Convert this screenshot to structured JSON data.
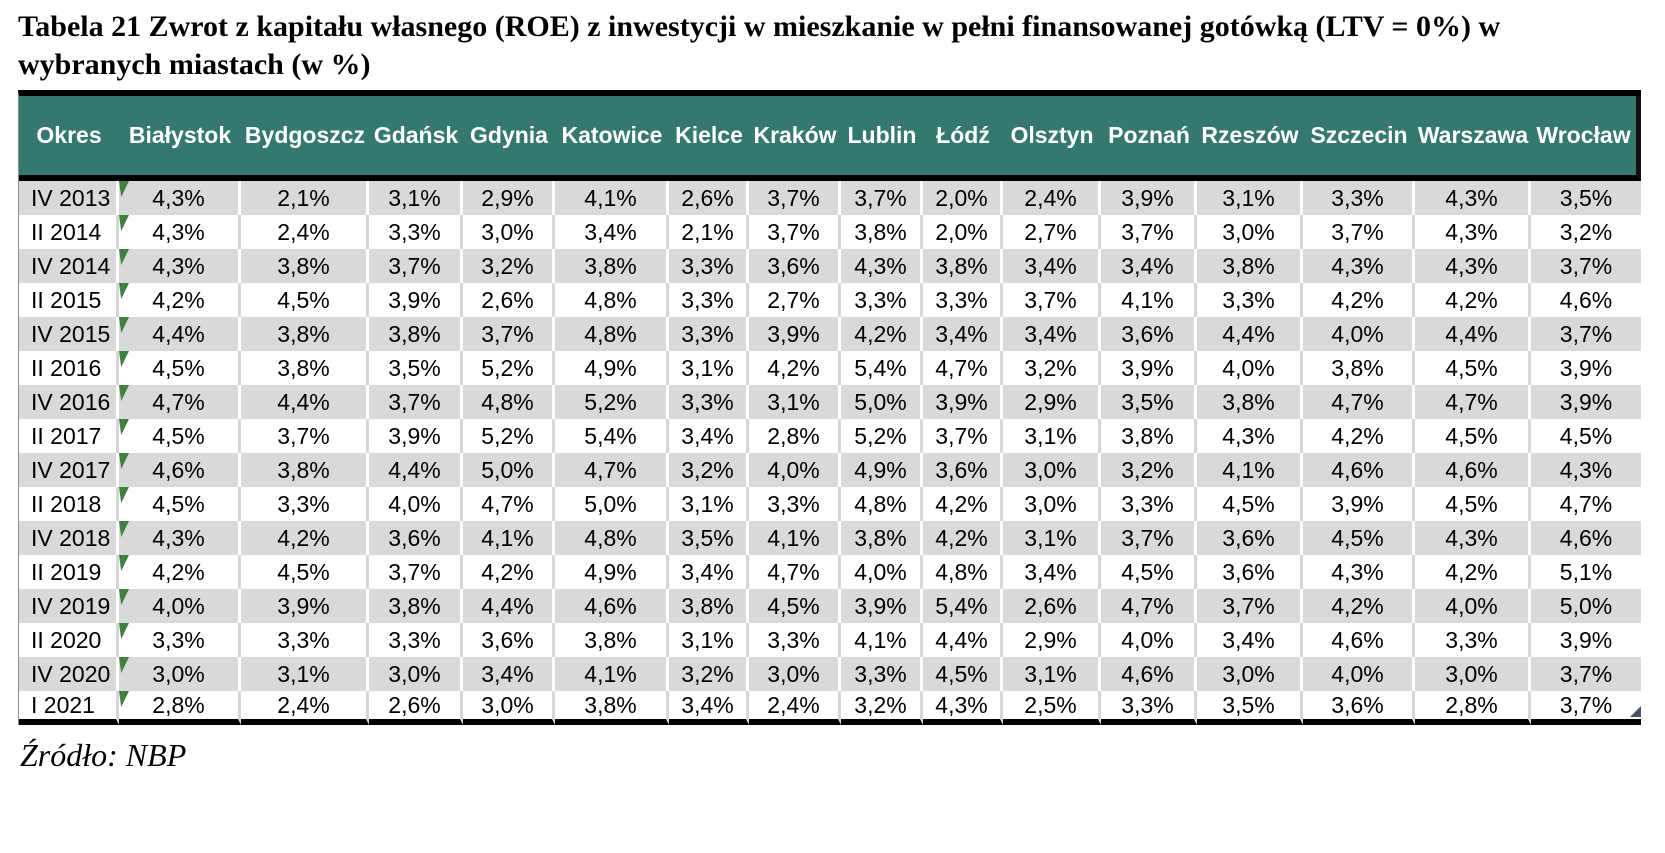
{
  "title": "Tabela 21 Zwrot z kapitału własnego (ROE) z inwestycji w mieszkanie w pełni finansowanej gotówką (LTV = 0%) w wybranych miastach (w %)",
  "source": "Źródło: NBP",
  "colors": {
    "header_bg": "#35786F",
    "header_text": "#FFFFFF",
    "stripe_bg": "#D9D9D9",
    "row_bg": "#FFFFFF",
    "marker_green": "#3F8040",
    "corner_blue": "#44546A",
    "rule_black": "#000000"
  },
  "icons": {
    "cell_flag": "green-corner-flag",
    "table_corner": "blue-corner-triangle"
  },
  "table": {
    "columns": [
      "Okres",
      "Białystok",
      "Bydgoszcz",
      "Gdańsk",
      "Gdynia",
      "Katowice",
      "Kielce",
      "Kraków",
      "Lublin",
      "Łódź",
      "Olsztyn",
      "Poznań",
      "Rzeszów",
      "Szczecin",
      "Warszawa",
      "Wrocław"
    ],
    "rows": [
      {
        "period": "IV 2013",
        "values": [
          "4,3%",
          "2,1%",
          "3,1%",
          "2,9%",
          "4,1%",
          "2,6%",
          "3,7%",
          "3,7%",
          "2,0%",
          "2,4%",
          "3,9%",
          "3,1%",
          "3,3%",
          "4,3%",
          "3,5%"
        ]
      },
      {
        "period": "II 2014",
        "values": [
          "4,3%",
          "2,4%",
          "3,3%",
          "3,0%",
          "3,4%",
          "2,1%",
          "3,7%",
          "3,8%",
          "2,0%",
          "2,7%",
          "3,7%",
          "3,0%",
          "3,7%",
          "4,3%",
          "3,2%"
        ]
      },
      {
        "period": "IV 2014",
        "values": [
          "4,3%",
          "3,8%",
          "3,7%",
          "3,2%",
          "3,8%",
          "3,3%",
          "3,6%",
          "4,3%",
          "3,8%",
          "3,4%",
          "3,4%",
          "3,8%",
          "4,3%",
          "4,3%",
          "3,7%"
        ]
      },
      {
        "period": "II 2015",
        "values": [
          "4,2%",
          "4,5%",
          "3,9%",
          "2,6%",
          "4,8%",
          "3,3%",
          "2,7%",
          "3,3%",
          "3,3%",
          "3,7%",
          "4,1%",
          "3,3%",
          "4,2%",
          "4,2%",
          "4,6%"
        ]
      },
      {
        "period": "IV 2015",
        "values": [
          "4,4%",
          "3,8%",
          "3,8%",
          "3,7%",
          "4,8%",
          "3,3%",
          "3,9%",
          "4,2%",
          "3,4%",
          "3,4%",
          "3,6%",
          "4,4%",
          "4,0%",
          "4,4%",
          "3,7%"
        ]
      },
      {
        "period": "II 2016",
        "values": [
          "4,5%",
          "3,8%",
          "3,5%",
          "5,2%",
          "4,9%",
          "3,1%",
          "4,2%",
          "5,4%",
          "4,7%",
          "3,2%",
          "3,9%",
          "4,0%",
          "3,8%",
          "4,5%",
          "3,9%"
        ]
      },
      {
        "period": "IV 2016",
        "values": [
          "4,7%",
          "4,4%",
          "3,7%",
          "4,8%",
          "5,2%",
          "3,3%",
          "3,1%",
          "5,0%",
          "3,9%",
          "2,9%",
          "3,5%",
          "3,8%",
          "4,7%",
          "4,7%",
          "3,9%"
        ]
      },
      {
        "period": "II 2017",
        "values": [
          "4,5%",
          "3,7%",
          "3,9%",
          "5,2%",
          "5,4%",
          "3,4%",
          "2,8%",
          "5,2%",
          "3,7%",
          "3,1%",
          "3,8%",
          "4,3%",
          "4,2%",
          "4,5%",
          "4,5%"
        ]
      },
      {
        "period": "IV 2017",
        "values": [
          "4,6%",
          "3,8%",
          "4,4%",
          "5,0%",
          "4,7%",
          "3,2%",
          "4,0%",
          "4,9%",
          "3,6%",
          "3,0%",
          "3,2%",
          "4,1%",
          "4,6%",
          "4,6%",
          "4,3%"
        ]
      },
      {
        "period": "II 2018",
        "values": [
          "4,5%",
          "3,3%",
          "4,0%",
          "4,7%",
          "5,0%",
          "3,1%",
          "3,3%",
          "4,8%",
          "4,2%",
          "3,0%",
          "3,3%",
          "4,5%",
          "3,9%",
          "4,5%",
          "4,7%"
        ]
      },
      {
        "period": "IV 2018",
        "values": [
          "4,3%",
          "4,2%",
          "3,6%",
          "4,1%",
          "4,8%",
          "3,5%",
          "4,1%",
          "3,8%",
          "4,2%",
          "3,1%",
          "3,7%",
          "3,6%",
          "4,5%",
          "4,3%",
          "4,6%"
        ]
      },
      {
        "period": "II 2019",
        "values": [
          "4,2%",
          "4,5%",
          "3,7%",
          "4,2%",
          "4,9%",
          "3,4%",
          "4,7%",
          "4,0%",
          "4,8%",
          "3,4%",
          "4,5%",
          "3,6%",
          "4,3%",
          "4,2%",
          "5,1%"
        ]
      },
      {
        "period": "IV 2019",
        "values": [
          "4,0%",
          "3,9%",
          "3,8%",
          "4,4%",
          "4,6%",
          "3,8%",
          "4,5%",
          "3,9%",
          "5,4%",
          "2,6%",
          "4,7%",
          "3,7%",
          "4,2%",
          "4,0%",
          "5,0%"
        ]
      },
      {
        "period": "II 2020",
        "values": [
          "3,3%",
          "3,3%",
          "3,3%",
          "3,6%",
          "3,8%",
          "3,1%",
          "3,3%",
          "4,1%",
          "4,4%",
          "2,9%",
          "4,0%",
          "3,4%",
          "4,6%",
          "3,3%",
          "3,9%"
        ]
      },
      {
        "period": "IV 2020",
        "values": [
          "3,0%",
          "3,1%",
          "3,0%",
          "3,4%",
          "4,1%",
          "3,2%",
          "3,0%",
          "3,3%",
          "4,5%",
          "3,1%",
          "4,6%",
          "3,0%",
          "4,0%",
          "3,0%",
          "3,7%"
        ]
      },
      {
        "period": "I 2021",
        "values": [
          "2,8%",
          "2,4%",
          "2,6%",
          "3,0%",
          "3,8%",
          "3,4%",
          "2,4%",
          "3,2%",
          "4,3%",
          "2,5%",
          "3,3%",
          "3,5%",
          "3,6%",
          "2,8%",
          "3,7%"
        ]
      }
    ]
  }
}
